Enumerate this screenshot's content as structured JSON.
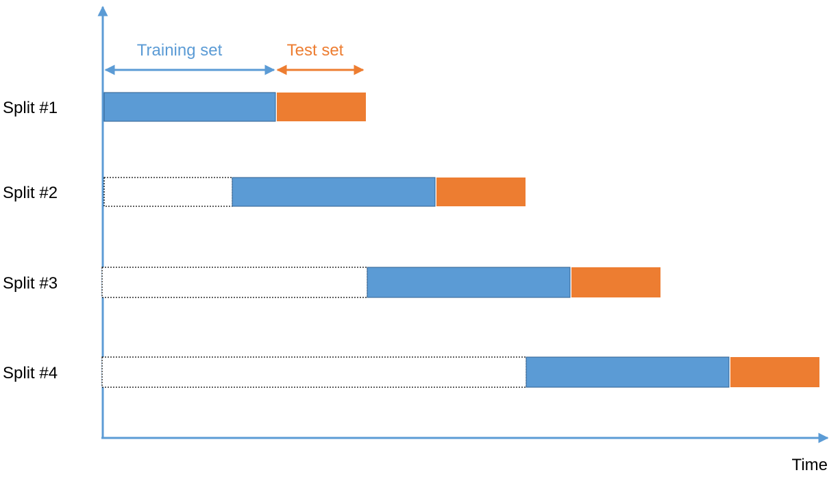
{
  "legend": {
    "training_label": "Training set",
    "test_label": "Test set"
  },
  "axis": {
    "x_label": "Time"
  },
  "splits": [
    {
      "label": "Split #1",
      "skipped": 0,
      "train": 250,
      "test": 130
    },
    {
      "label": "Split #2",
      "skipped": 187,
      "train": 296,
      "test": 130
    },
    {
      "label": "Split #3",
      "skipped": 384,
      "train": 296,
      "test": 130
    },
    {
      "label": "Split #4",
      "skipped": 616,
      "train": 296,
      "test": 130
    }
  ],
  "colors": {
    "axis": "#5b9bd5",
    "train": "#5b9bd5",
    "test": "#ed7d31",
    "skipped_border": "#000000",
    "text": "#000000"
  }
}
